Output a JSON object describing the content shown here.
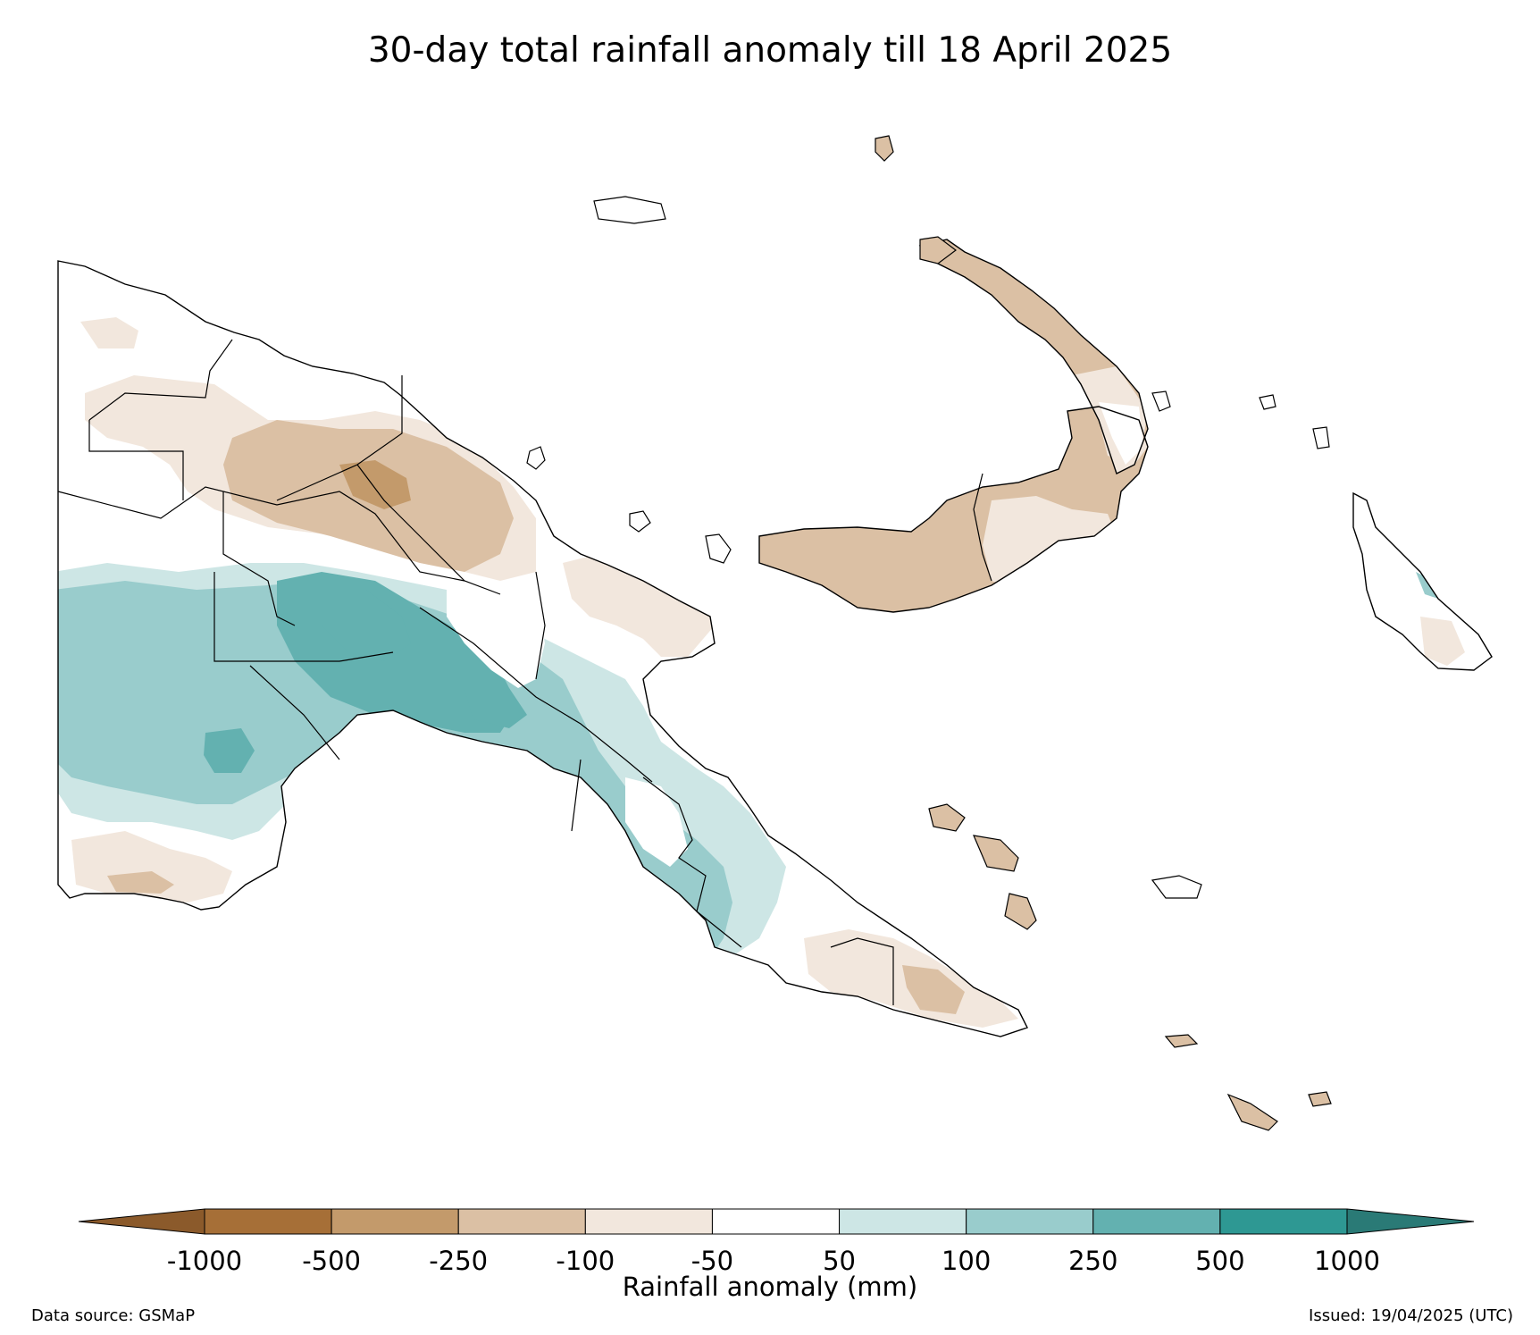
{
  "title": "30-day total rainfall anomaly till 18 April 2025",
  "colorbar": {
    "label": "Rainfall anomaly (mm)",
    "ticks": [
      "-1000",
      "-500",
      "-250",
      "-100",
      "-50",
      "50",
      "100",
      "250",
      "500",
      "1000"
    ],
    "colors": [
      "#a66f37",
      "#c39a6b",
      "#dbc0a4",
      "#f2e7dd",
      "#ffffff",
      "#cde6e5",
      "#99cccc",
      "#63b1b0",
      "#2e9893"
    ],
    "extend_low_color": "#8b5a2b",
    "extend_high_color": "#2a7a76"
  },
  "map_colors": {
    "dry_strong": "#c39a6b",
    "dry_moderate": "#dbc0a4",
    "dry_light": "#f2e7dd",
    "neutral": "#ffffff",
    "wet_light": "#cde6e5",
    "wet_moderate": "#99cccc",
    "wet_strong": "#63b1b0",
    "border": "#000000"
  },
  "footer": {
    "source": "Data source: GSMaP",
    "issued": "Issued: 19/04/2025 (UTC)"
  }
}
